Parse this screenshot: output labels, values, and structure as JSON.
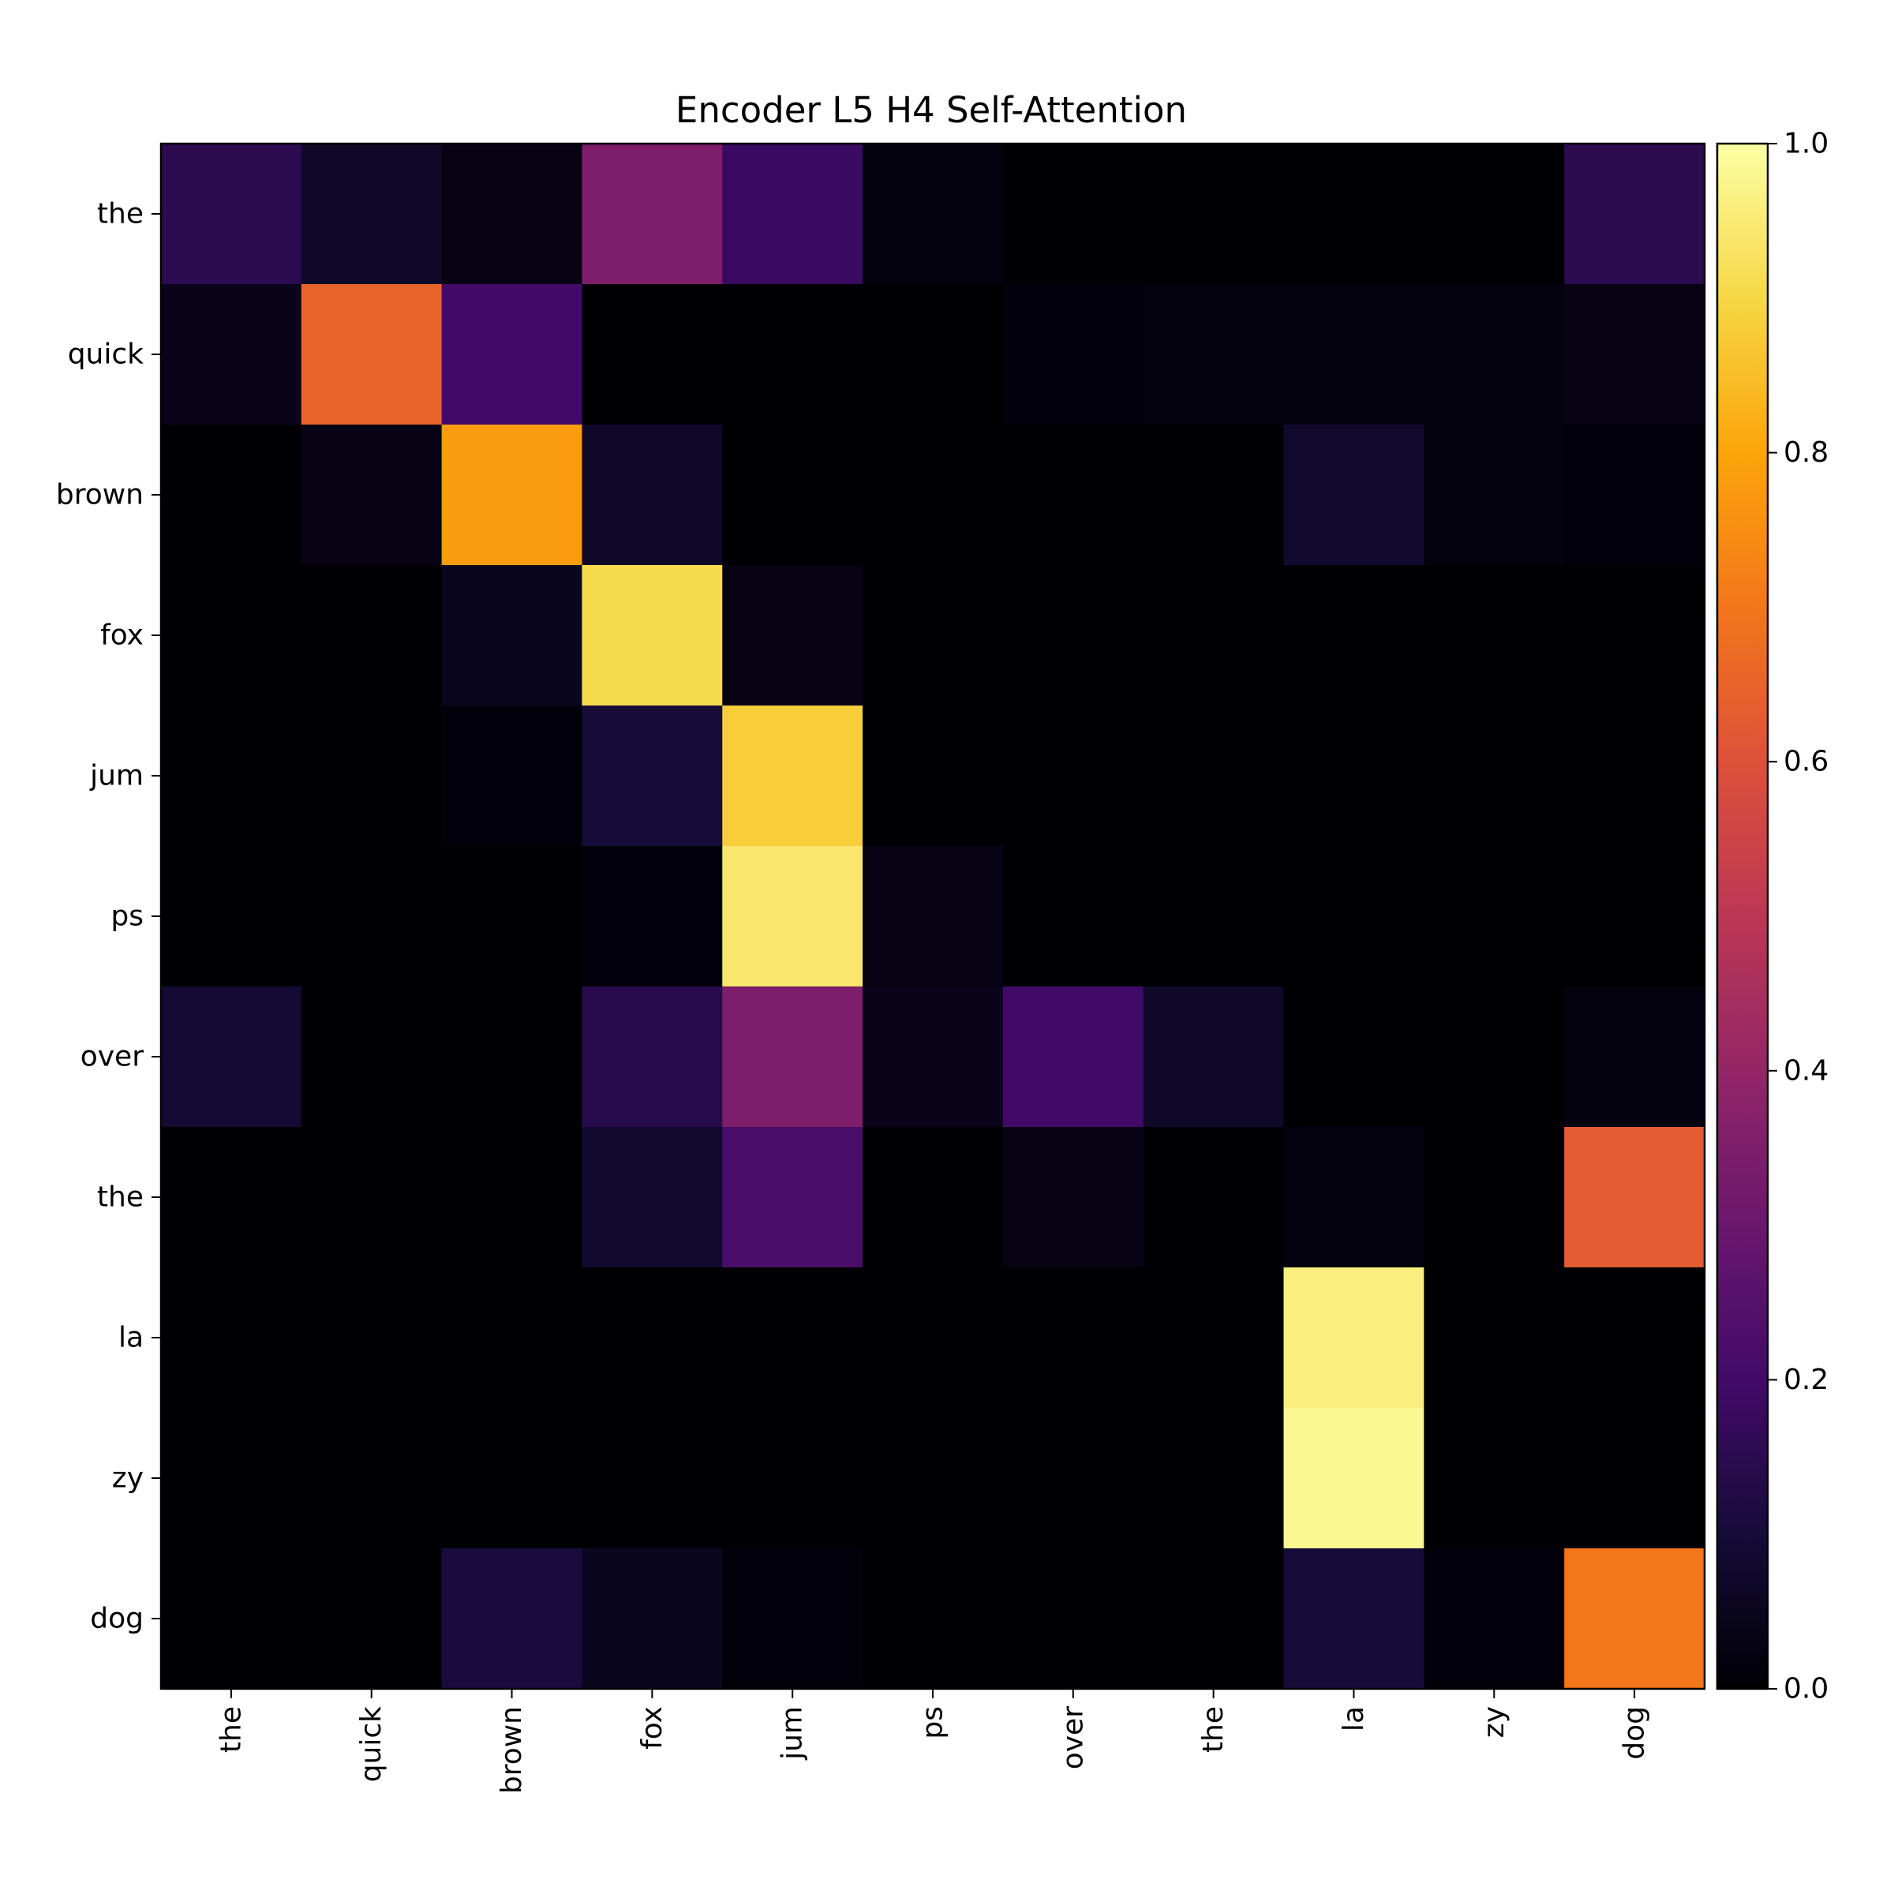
{
  "chart_data": {
    "type": "heatmap",
    "title": "Encoder L5 H4 Self-Attention",
    "x_tokens": [
      "the",
      "quick",
      "brown",
      "fox",
      "jum",
      "ps",
      "over",
      "the",
      "la",
      "zy",
      "dog"
    ],
    "y_tokens": [
      "the",
      "quick",
      "brown",
      "fox",
      "jum",
      "ps",
      "over",
      "the",
      "la",
      "zy",
      "dog"
    ],
    "values": [
      [
        0.15,
        0.07,
        0.03,
        0.35,
        0.18,
        0.02,
        0.0,
        0.0,
        0.0,
        0.0,
        0.15
      ],
      [
        0.04,
        0.65,
        0.2,
        0.0,
        0.0,
        0.0,
        0.01,
        0.02,
        0.02,
        0.02,
        0.03
      ],
      [
        0.0,
        0.03,
        0.78,
        0.07,
        0.0,
        0.0,
        0.0,
        0.0,
        0.08,
        0.02,
        0.01
      ],
      [
        0.0,
        0.0,
        0.05,
        0.91,
        0.03,
        0.0,
        0.0,
        0.0,
        0.0,
        0.0,
        0.0
      ],
      [
        0.0,
        0.0,
        0.01,
        0.1,
        0.88,
        0.0,
        0.0,
        0.0,
        0.0,
        0.0,
        0.0
      ],
      [
        0.0,
        0.0,
        0.0,
        0.01,
        0.94,
        0.03,
        0.0,
        0.0,
        0.0,
        0.0,
        0.0
      ],
      [
        0.09,
        0.0,
        0.0,
        0.14,
        0.35,
        0.04,
        0.2,
        0.07,
        0.0,
        0.0,
        0.02
      ],
      [
        0.0,
        0.0,
        0.0,
        0.08,
        0.22,
        0.0,
        0.03,
        0.0,
        0.02,
        0.0,
        0.63
      ],
      [
        0.0,
        0.0,
        0.0,
        0.0,
        0.0,
        0.0,
        0.0,
        0.0,
        0.96,
        0.0,
        0.0
      ],
      [
        0.0,
        0.0,
        0.0,
        0.0,
        0.0,
        0.0,
        0.0,
        0.0,
        0.98,
        0.0,
        0.0
      ],
      [
        0.0,
        0.0,
        0.11,
        0.05,
        0.01,
        0.0,
        0.0,
        0.0,
        0.1,
        0.01,
        0.7
      ]
    ],
    "colormap": "inferno",
    "vmin": 0.0,
    "vmax": 1.0,
    "colorbar_ticks": [
      "0.0",
      "0.2",
      "0.4",
      "0.6",
      "0.8",
      "1.0"
    ],
    "grid": false,
    "legend": "colorbar-right"
  }
}
